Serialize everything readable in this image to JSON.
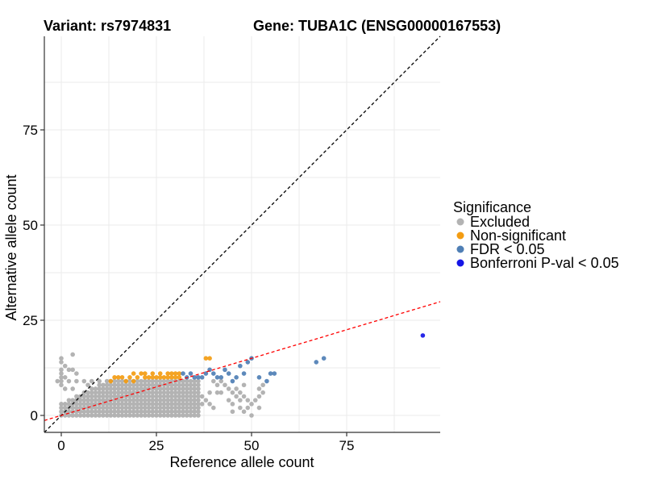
{
  "title_variant": "Variant: rs7974831",
  "title_gene": "Gene: TUBA1C (ENSG00000167553)",
  "colors": {
    "excluded": "#b3b3b3",
    "non_significant": "#f39c12",
    "fdr": "#4f7fb5",
    "bonferroni": "#1515e6",
    "diagonal": "#000000",
    "regression": "#ff0000",
    "grid": "#ebebeb"
  },
  "chart_data": {
    "type": "scatter",
    "xlabel": "Reference allele count",
    "ylabel": "Alternative allele count",
    "xlim": [
      -4,
      100
    ],
    "ylim": [
      -5,
      100
    ],
    "x_ticks": [
      0,
      25,
      50,
      75
    ],
    "y_ticks": [
      0,
      25,
      50,
      75
    ],
    "grid": true,
    "legend": {
      "title": "Significance",
      "position": "right",
      "entries": [
        {
          "key": "excluded",
          "label": "Excluded"
        },
        {
          "key": "non_significant",
          "label": "Non-significant"
        },
        {
          "key": "fdr",
          "label": "FDR < 0.05"
        },
        {
          "key": "bonferroni",
          "label": "Bonferroni P-val < 0.05"
        }
      ]
    },
    "reference_lines": [
      {
        "name": "identity",
        "style": "dashed",
        "color": "#000000",
        "intercept": 0,
        "slope": 1
      },
      {
        "name": "regression",
        "style": "dashed",
        "color": "#ff0000",
        "intercept": 0,
        "slope": 0.3
      }
    ],
    "excluded_clusters": [
      {
        "x_range": [
          0,
          36
        ],
        "y_range": [
          0,
          9
        ],
        "description": "dense grid of integer counts"
      }
    ],
    "series": [
      {
        "name": "Excluded",
        "key": "excluded",
        "points": [
          [
            0,
            14
          ],
          [
            0,
            15
          ],
          [
            1,
            13
          ],
          [
            3,
            16
          ],
          [
            0,
            12
          ],
          [
            0,
            11
          ],
          [
            0,
            10
          ],
          [
            1,
            10
          ],
          [
            3,
            12
          ],
          [
            2,
            12
          ],
          [
            4,
            11
          ],
          [
            -1,
            9
          ],
          [
            0,
            9
          ],
          [
            2,
            9
          ],
          [
            4,
            9
          ],
          [
            6,
            9
          ],
          [
            10,
            9
          ],
          [
            12,
            9
          ],
          [
            7,
            8
          ],
          [
            8,
            9
          ],
          [
            0,
            8
          ],
          [
            1,
            7
          ],
          [
            3,
            7
          ],
          [
            40,
            9
          ],
          [
            41,
            8
          ],
          [
            42,
            9
          ],
          [
            43,
            8
          ],
          [
            44,
            7
          ],
          [
            45,
            6
          ],
          [
            46,
            5
          ],
          [
            42,
            6
          ],
          [
            41,
            6
          ],
          [
            44,
            4
          ],
          [
            45,
            3
          ],
          [
            46,
            7
          ],
          [
            47,
            6
          ],
          [
            48,
            5
          ],
          [
            49,
            4
          ],
          [
            50,
            3
          ],
          [
            48,
            8
          ],
          [
            45,
            1
          ],
          [
            48,
            1
          ],
          [
            50,
            0
          ],
          [
            47,
            4
          ],
          [
            39,
            3
          ],
          [
            40,
            2
          ],
          [
            37,
            5
          ],
          [
            38,
            4
          ],
          [
            39,
            6
          ],
          [
            36,
            2
          ],
          [
            37,
            3
          ],
          [
            47,
            2
          ],
          [
            49,
            2
          ],
          [
            53,
            8
          ],
          [
            52,
            7
          ],
          [
            53,
            6
          ],
          [
            52,
            5
          ],
          [
            51,
            4
          ],
          [
            52,
            2
          ]
        ]
      },
      {
        "name": "Non-significant",
        "key": "non_significant",
        "points": [
          [
            14,
            10
          ],
          [
            15,
            10
          ],
          [
            17,
            9
          ],
          [
            18,
            10
          ],
          [
            19,
            11
          ],
          [
            20,
            10
          ],
          [
            21,
            11
          ],
          [
            22,
            11
          ],
          [
            23,
            10
          ],
          [
            24,
            11
          ],
          [
            25,
            10
          ],
          [
            26,
            11
          ],
          [
            27,
            10
          ],
          [
            28,
            11
          ],
          [
            29,
            10
          ],
          [
            30,
            10
          ],
          [
            30,
            11
          ],
          [
            31,
            11
          ],
          [
            31,
            10
          ],
          [
            13,
            9
          ],
          [
            16,
            10
          ],
          [
            19,
            9
          ],
          [
            22,
            10
          ],
          [
            24,
            10
          ],
          [
            26,
            10
          ],
          [
            28,
            10
          ],
          [
            29,
            11
          ],
          [
            38,
            15
          ],
          [
            39,
            15
          ]
        ]
      },
      {
        "name": "FDR < 0.05",
        "key": "fdr",
        "points": [
          [
            32,
            11
          ],
          [
            33,
            10
          ],
          [
            34,
            11
          ],
          [
            35,
            10
          ],
          [
            36,
            10
          ],
          [
            37,
            10
          ],
          [
            38,
            11
          ],
          [
            39,
            12
          ],
          [
            40,
            11
          ],
          [
            41,
            10
          ],
          [
            42,
            10
          ],
          [
            43,
            12
          ],
          [
            44,
            11
          ],
          [
            45,
            9
          ],
          [
            46,
            10
          ],
          [
            47,
            13
          ],
          [
            48,
            11
          ],
          [
            49,
            14
          ],
          [
            50,
            15
          ],
          [
            52,
            10
          ],
          [
            54,
            9
          ],
          [
            55,
            11
          ],
          [
            56,
            11
          ],
          [
            67,
            14
          ],
          [
            69,
            15
          ]
        ]
      },
      {
        "name": "Bonferroni P-val < 0.05",
        "key": "bonferroni",
        "points": [
          [
            95,
            21
          ]
        ]
      }
    ]
  }
}
